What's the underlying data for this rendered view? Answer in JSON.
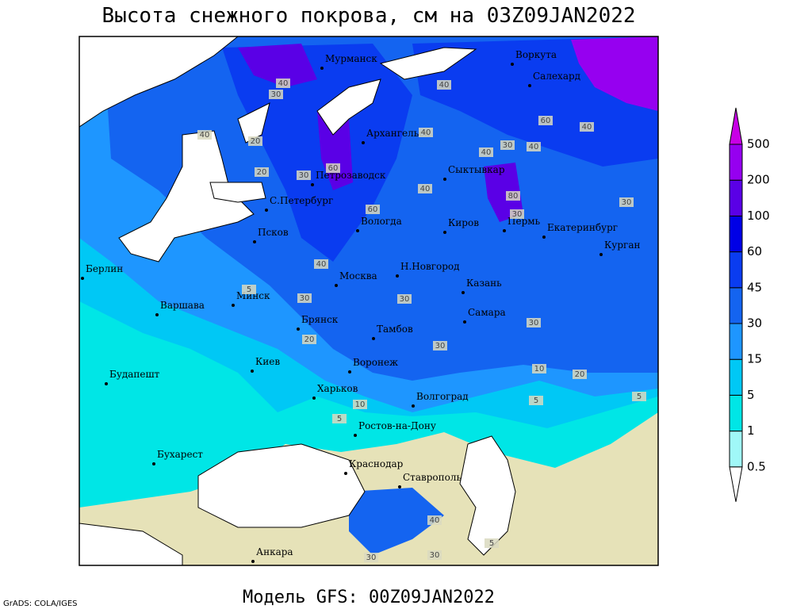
{
  "title": "Высота снежного покрова, см на 03Z09JAN2022",
  "footer": "Модель GFS: 00Z09JAN2022",
  "credit": "GrADS: COLA/IGES",
  "cities": [
    "Мурманск",
    "Воркута",
    "Салехард",
    "Архангельск",
    "Петрозаводск",
    "Сыктывкар",
    "С.Петербург",
    "Вологда",
    "Киров",
    "Пермь",
    "Екатеринбург",
    "Курган",
    "Псков",
    "Берлин",
    "Н.Новгород",
    "Москва",
    "Казань",
    "Минск",
    "Варшава",
    "Самара",
    "Брянск",
    "Тамбов",
    "Киев",
    "Воронеж",
    "Будапешт",
    "Харьков",
    "Волгоград",
    "Ростов-на-Дону",
    "Бухарест",
    "Краснодар",
    "Ставрополь",
    "Анкара"
  ],
  "contour_labels": [
    40,
    30,
    40,
    60,
    20,
    40,
    20,
    30,
    60,
    40,
    40,
    40,
    30,
    60,
    40,
    30,
    80,
    30,
    40,
    40,
    30,
    30,
    30,
    20,
    30,
    10,
    10,
    20,
    5,
    5,
    5,
    5,
    40,
    30,
    30,
    5
  ],
  "legend": {
    "levels": [
      0.5,
      1,
      5,
      15,
      30,
      45,
      60,
      100,
      200,
      500
    ],
    "colors": [
      "#ffffff",
      "#a0f8f8",
      "#00e6e6",
      "#00c8f5",
      "#1e96ff",
      "#1464f0",
      "#0a3cf0",
      "#0000e6",
      "#5a00e6",
      "#9600f0",
      "#c800e6"
    ]
  }
}
